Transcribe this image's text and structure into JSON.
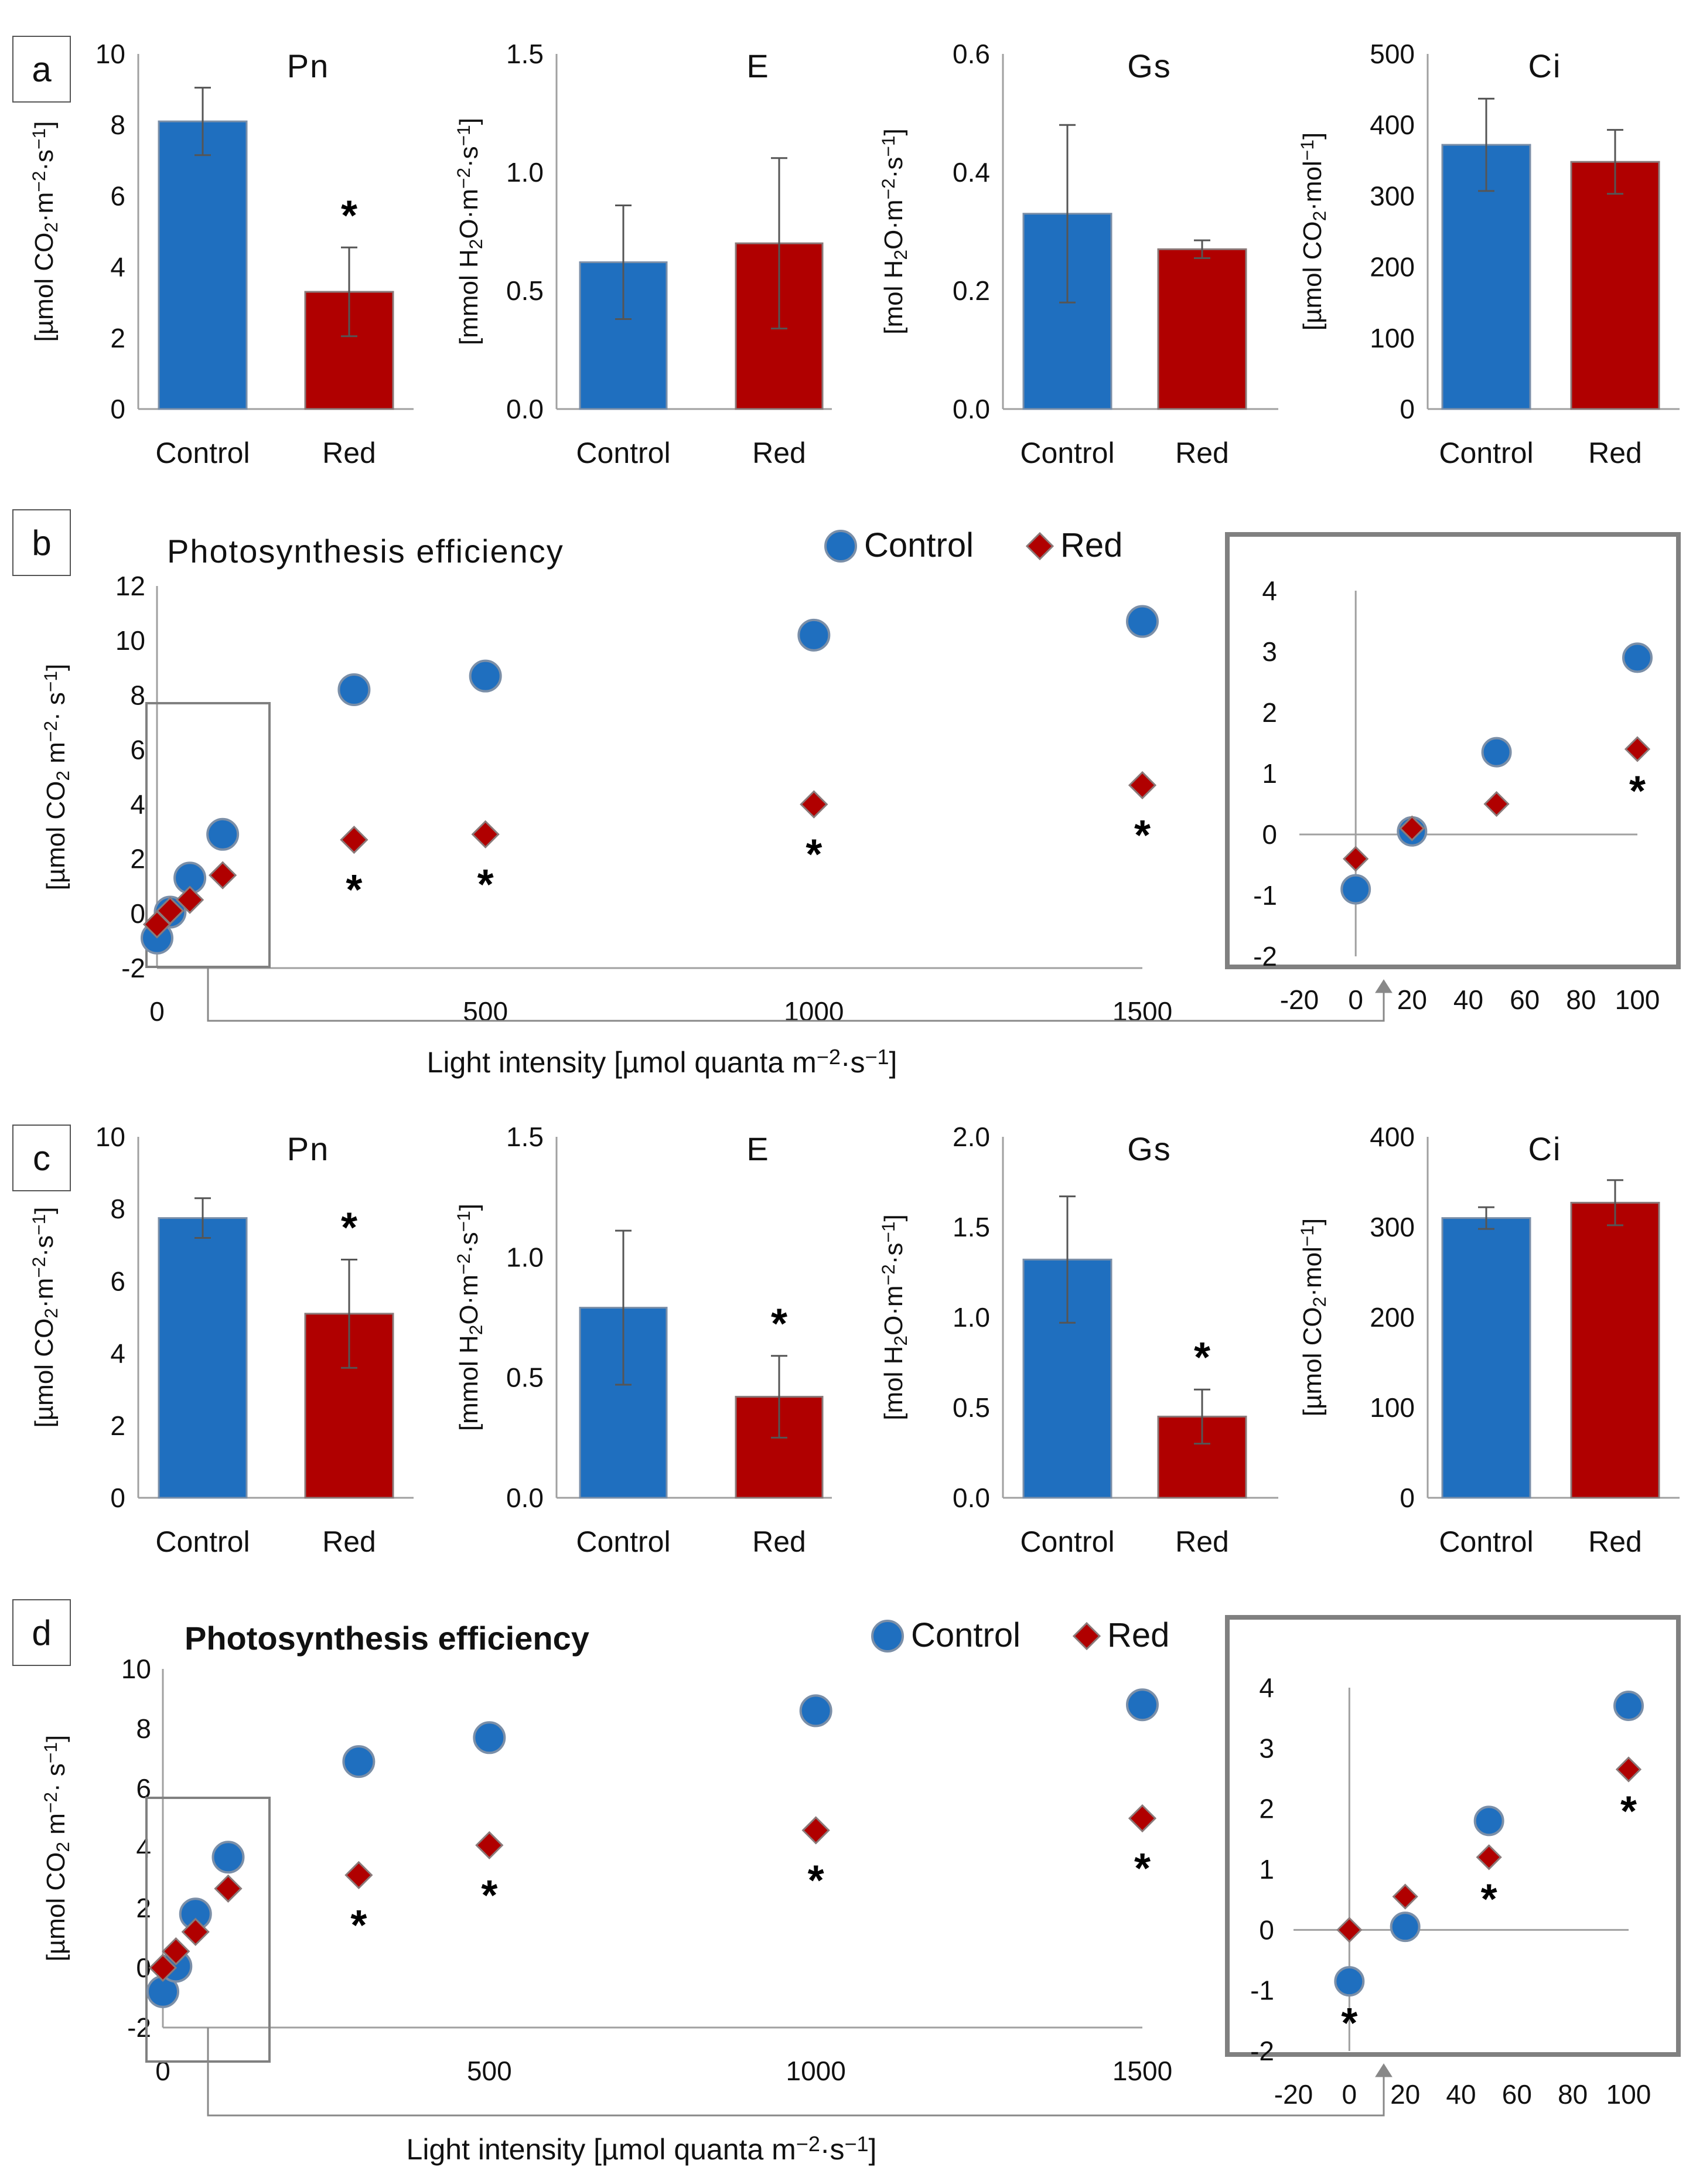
{
  "colors": {
    "control": "#1f6fbf",
    "control_edge": "#7b8fa8",
    "red": "#b00000",
    "red_edge": "#8a7a7a",
    "axis": "#a0a0a0",
    "error_bar": "#555555",
    "box": "#808080"
  },
  "markers": {
    "control": "circle",
    "red": "diamond",
    "significance": "*"
  },
  "chart_data": [
    {
      "id": "a-pn",
      "panel": "a",
      "type": "bar",
      "title": "Pn",
      "ylabel": "[µmol CO2·m−2·s−1]",
      "ylabel_parts": [
        "[µmol CO",
        "2",
        "·m",
        "−2",
        "·s",
        "−1",
        "]"
      ],
      "categories": [
        "Control",
        "Red"
      ],
      "values": [
        8.1,
        3.3
      ],
      "errors": [
        0.95,
        1.25
      ],
      "significant": [
        false,
        true
      ],
      "ylim": [
        0,
        10
      ],
      "yticks": [
        "0",
        "2",
        "4",
        "6",
        "8",
        "10"
      ]
    },
    {
      "id": "a-e",
      "panel": "a",
      "type": "bar",
      "title": "E",
      "ylabel": "[mmol H2O·m−2·s−1]",
      "ylabel_parts": [
        "[mmol H",
        "2",
        "O·m",
        "−2",
        "·s",
        "−1",
        "]"
      ],
      "categories": [
        "Control",
        "Red"
      ],
      "values": [
        0.62,
        0.7
      ],
      "errors": [
        0.24,
        0.36
      ],
      "significant": [
        false,
        false
      ],
      "ylim": [
        0,
        1.5
      ],
      "yticks": [
        "0.0",
        "0.5",
        "1.0",
        "1.5"
      ]
    },
    {
      "id": "a-gs",
      "panel": "a",
      "type": "bar",
      "title": "Gs",
      "ylabel": "[mol H2O·m−2·s−1]",
      "ylabel_parts": [
        "[mol H",
        "2",
        "O·m",
        "−2",
        "·s",
        "−1",
        "]"
      ],
      "categories": [
        "Control",
        "Red"
      ],
      "values": [
        0.33,
        0.27
      ],
      "errors": [
        0.15,
        0.015
      ],
      "significant": [
        false,
        false
      ],
      "ylim": [
        0,
        0.6
      ],
      "yticks": [
        "0.0",
        "0.2",
        "0.4",
        "0.6"
      ]
    },
    {
      "id": "a-ci",
      "panel": "a",
      "type": "bar",
      "title": "Ci",
      "ylabel": "[µmol CO2·mol−1]",
      "ylabel_parts": [
        "[µmol CO",
        "2",
        "·mol",
        "−1",
        "]"
      ],
      "categories": [
        "Control",
        "Red"
      ],
      "values": [
        372,
        348
      ],
      "errors": [
        65,
        45
      ],
      "significant": [
        false,
        false
      ],
      "ylim": [
        0,
        500
      ],
      "yticks": [
        "0",
        "100",
        "200",
        "300",
        "400",
        "500"
      ]
    },
    {
      "id": "b-main",
      "panel": "b",
      "type": "scatter",
      "title": "Photosynthesis efficiency",
      "xlabel": "Light intensity [µmol quanta m−2·s−1]",
      "xlabel_parts": [
        "Light intensity [µmol quanta m",
        "−2",
        "·s",
        "−1",
        "]"
      ],
      "ylabel": "[µmol CO2 m−2· s−1]",
      "ylabel_parts": [
        "[µmol CO",
        "2",
        " m",
        "−2",
        "· s",
        "−1",
        "]"
      ],
      "legend": [
        "Control",
        "Red"
      ],
      "xlim": [
        0,
        1500
      ],
      "ylim": [
        -2,
        12
      ],
      "xticks": [
        "0",
        "500",
        "1000",
        "1500"
      ],
      "yticks": [
        "-2",
        "0",
        "2",
        "4",
        "6",
        "8",
        "10",
        "12"
      ],
      "series": [
        {
          "name": "Control",
          "x": [
            0,
            20,
            50,
            100,
            300,
            500,
            1000,
            1500
          ],
          "y": [
            -0.9,
            0.05,
            1.3,
            2.9,
            8.2,
            8.7,
            10.2,
            10.7
          ]
        },
        {
          "name": "Red",
          "x": [
            0,
            20,
            50,
            100,
            300,
            500,
            1000,
            1500
          ],
          "y": [
            -0.4,
            0.1,
            0.5,
            1.4,
            2.7,
            2.9,
            4.0,
            4.7
          ]
        }
      ],
      "significant_x": [
        300,
        500,
        1000,
        1500
      ]
    },
    {
      "id": "b-inset",
      "panel": "b",
      "type": "scatter",
      "xlim": [
        -20,
        100
      ],
      "ylim": [
        -2,
        4
      ],
      "xticks": [
        "-20",
        "0",
        "20",
        "40",
        "60",
        "80",
        "100"
      ],
      "yticks": [
        "-2",
        "-1",
        "0",
        "1",
        "2",
        "3",
        "4"
      ],
      "series": [
        {
          "name": "Control",
          "x": [
            0,
            20,
            50,
            100
          ],
          "y": [
            -0.9,
            0.05,
            1.35,
            2.9
          ]
        },
        {
          "name": "Red",
          "x": [
            0,
            20,
            50,
            100
          ],
          "y": [
            -0.4,
            0.1,
            0.5,
            1.4
          ]
        }
      ],
      "significant_x": [
        100
      ]
    },
    {
      "id": "c-pn",
      "panel": "c",
      "type": "bar",
      "title": "Pn",
      "ylabel": "[µmol CO2·m−2·s−1]",
      "ylabel_parts": [
        "[µmol CO",
        "2",
        "·m",
        "−2",
        "·s",
        "−1",
        "]"
      ],
      "categories": [
        "Control",
        "Red"
      ],
      "values": [
        7.75,
        5.1
      ],
      "errors": [
        0.55,
        1.5
      ],
      "significant": [
        false,
        true
      ],
      "ylim": [
        0,
        10
      ],
      "yticks": [
        "0",
        "2",
        "4",
        "6",
        "8",
        "10"
      ]
    },
    {
      "id": "c-e",
      "panel": "c",
      "type": "bar",
      "title": "E",
      "ylabel": "[mmol H2O·m−2·s−1]",
      "ylabel_parts": [
        "[mmol H",
        "2",
        "O·m",
        "−2",
        "·s",
        "−1",
        "]"
      ],
      "categories": [
        "Control",
        "Red"
      ],
      "values": [
        0.79,
        0.42
      ],
      "errors": [
        0.32,
        0.17
      ],
      "significant": [
        false,
        true
      ],
      "ylim": [
        0,
        1.5
      ],
      "yticks": [
        "0.0",
        "0.5",
        "1.0",
        "1.5"
      ]
    },
    {
      "id": "c-gs",
      "panel": "c",
      "type": "bar",
      "title": "Gs",
      "ylabel": "[mol H2O·m−2·s−1]",
      "ylabel_parts": [
        "[mol H",
        "2",
        "O·m",
        "−2",
        "·s",
        "−1",
        "]"
      ],
      "categories": [
        "Control",
        "Red"
      ],
      "values": [
        1.32,
        0.45
      ],
      "errors": [
        0.35,
        0.15
      ],
      "significant": [
        false,
        true
      ],
      "ylim": [
        0,
        2.0
      ],
      "yticks": [
        "0.0",
        "0.5",
        "1.0",
        "1.5",
        "2.0"
      ]
    },
    {
      "id": "c-ci",
      "panel": "c",
      "type": "bar",
      "title": "Ci",
      "ylabel": "[µmol CO2·mol−1]",
      "ylabel_parts": [
        "[µmol CO",
        "2",
        "·mol",
        "−1",
        "]"
      ],
      "categories": [
        "Control",
        "Red"
      ],
      "values": [
        310,
        327
      ],
      "errors": [
        12,
        25
      ],
      "significant": [
        false,
        false
      ],
      "ylim": [
        0,
        400
      ],
      "yticks": [
        "0",
        "100",
        "200",
        "300",
        "400"
      ]
    },
    {
      "id": "d-main",
      "panel": "d",
      "type": "scatter",
      "title": "Photosynthesis efficiency",
      "xlabel": "Light intensity [µmol quanta m−2·s−1]",
      "xlabel_parts": [
        "Light intensity [µmol quanta m",
        "−2",
        "·s",
        "−1",
        "]"
      ],
      "ylabel": "[µmol CO2 m−2· s−1]",
      "ylabel_parts": [
        "[µmol CO",
        "2",
        " m",
        "−2",
        "· s",
        "−1",
        "]"
      ],
      "legend": [
        "Control",
        "Red"
      ],
      "xlim": [
        0,
        1500
      ],
      "ylim": [
        -2,
        10
      ],
      "xticks": [
        "0",
        "500",
        "1000",
        "1500"
      ],
      "yticks": [
        "-2",
        "0",
        "2",
        "4",
        "6",
        "8",
        "10"
      ],
      "series": [
        {
          "name": "Control",
          "x": [
            0,
            20,
            50,
            100,
            300,
            500,
            1000,
            1500
          ],
          "y": [
            -0.8,
            0.05,
            1.8,
            3.7,
            6.9,
            7.7,
            8.6,
            8.8
          ]
        },
        {
          "name": "Red",
          "x": [
            0,
            20,
            50,
            100,
            300,
            500,
            1000,
            1500
          ],
          "y": [
            0.0,
            0.55,
            1.2,
            2.65,
            3.1,
            4.1,
            4.6,
            5.0
          ]
        }
      ],
      "significant_x": [
        300,
        500,
        1000,
        1500
      ]
    },
    {
      "id": "d-inset",
      "panel": "d",
      "type": "scatter",
      "xlim": [
        -20,
        100
      ],
      "ylim": [
        -2,
        4
      ],
      "xticks": [
        "-20",
        "0",
        "20",
        "40",
        "60",
        "80",
        "100"
      ],
      "yticks": [
        "-2",
        "-1",
        "0",
        "1",
        "2",
        "3",
        "4"
      ],
      "series": [
        {
          "name": "Control",
          "x": [
            0,
            20,
            50,
            100
          ],
          "y": [
            -0.85,
            0.05,
            1.8,
            3.7
          ]
        },
        {
          "name": "Red",
          "x": [
            0,
            20,
            50,
            100
          ],
          "y": [
            0.0,
            0.55,
            1.2,
            2.65
          ]
        }
      ],
      "significant_x": [
        0,
        50,
        100
      ]
    }
  ],
  "panel_labels": [
    "a",
    "b",
    "c",
    "d"
  ]
}
